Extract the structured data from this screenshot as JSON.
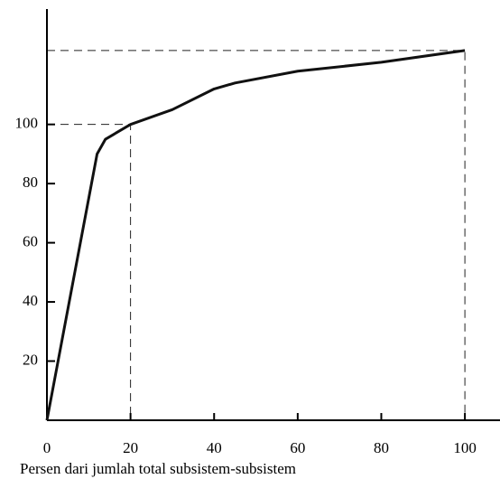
{
  "chart_data": {
    "type": "line",
    "x_label": "Persen dari jumlah total subsistem-subsistem",
    "x": [
      0,
      12,
      14,
      20,
      30,
      40,
      45,
      60,
      80,
      100
    ],
    "values": [
      0,
      90,
      95,
      100,
      105,
      112,
      114,
      118,
      121,
      125
    ],
    "color": "#111111",
    "xlim": [
      0,
      108.4
    ],
    "xticks": [
      0,
      20,
      40,
      60,
      80,
      100
    ],
    "ylim": [
      0,
      139
    ],
    "yticks": [
      20,
      40,
      60,
      80,
      100
    ],
    "reference_points": [
      {
        "x": 20,
        "y": 100
      },
      {
        "x": 100,
        "y": 125
      }
    ]
  }
}
